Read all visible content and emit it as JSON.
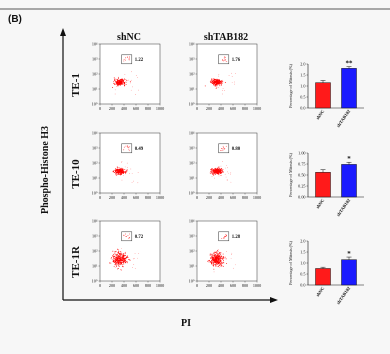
{
  "panel_label": "(B)",
  "y_axis_title": "Phospho-Histone H3",
  "x_axis_title": "PI",
  "column_headers": [
    "shNC",
    "shTAB182"
  ],
  "row_labels": [
    "TE-1",
    "TE-10",
    "TE-1R"
  ],
  "colors": {
    "control": "#ff1a1a",
    "knockdown": "#1a1aff",
    "dots": "#ff0000"
  },
  "chart_data": [
    {
      "type": "scatter",
      "row": "TE-1",
      "x_ticks": [
        "0",
        "200",
        "400",
        "600",
        "800",
        "1000"
      ],
      "y_ticks": [
        "10⁰",
        "10¹",
        "10²",
        "10³",
        "10⁴"
      ],
      "gate_values": {
        "shNC": "1.22",
        "shTAB182": "1.76"
      }
    },
    {
      "type": "bar",
      "row": "TE-1",
      "categories": [
        "shNC",
        "shTAB182"
      ],
      "values": [
        1.15,
        1.8
      ],
      "errors": [
        0.1,
        0.08
      ],
      "significance": [
        "",
        "**"
      ],
      "ylabel": "Percentage of Mitosis (%)",
      "y_ticks": [
        "0.0",
        "0.5",
        "1.0",
        "1.5",
        "2.0"
      ],
      "ylim": [
        0,
        2.0
      ]
    },
    {
      "type": "scatter",
      "row": "TE-10",
      "x_ticks": [
        "0",
        "200",
        "400",
        "600",
        "800",
        "1000"
      ],
      "y_ticks": [
        "10⁰",
        "10¹",
        "10²",
        "10³",
        "10⁴"
      ],
      "gate_values": {
        "shNC": "0.49",
        "shTAB182": "0.80"
      }
    },
    {
      "type": "bar",
      "row": "TE-10",
      "categories": [
        "shNC",
        "shTAB182"
      ],
      "values": [
        0.56,
        0.74
      ],
      "errors": [
        0.06,
        0.05
      ],
      "significance": [
        "",
        "*"
      ],
      "ylabel": "Percentage of Mitosis (%)",
      "y_ticks": [
        "0.00",
        "0.25",
        "0.50",
        "0.75",
        "1.00"
      ],
      "ylim": [
        0,
        1.0
      ]
    },
    {
      "type": "scatter",
      "row": "TE-1R",
      "x_ticks": [
        "0",
        "200",
        "400",
        "600",
        "800",
        "1000"
      ],
      "y_ticks": [
        "10⁰",
        "10¹",
        "10²",
        "10³",
        "10⁴"
      ],
      "gate_values": {
        "shNC": "0.72",
        "shTAB182": "1.28"
      }
    },
    {
      "type": "bar",
      "row": "TE-1R",
      "categories": [
        "shNC",
        "shTAB182"
      ],
      "values": [
        0.75,
        1.15
      ],
      "errors": [
        0.06,
        0.12
      ],
      "significance": [
        "",
        "*"
      ],
      "ylabel": "Percentage of Mitosis (%)",
      "y_ticks": [
        "0.0",
        "0.5",
        "1.0",
        "1.5",
        "2.0"
      ],
      "ylim": [
        0,
        2.0
      ]
    }
  ]
}
